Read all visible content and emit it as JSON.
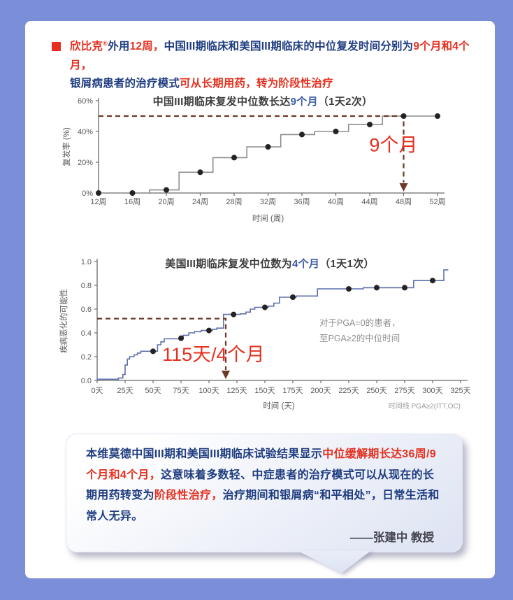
{
  "colors": {
    "frame_bg": "#7b8ed8",
    "panel_bg": "#ffffff",
    "red": "#e5301f",
    "navy": "#1e3c80",
    "blue": "#3d5cab",
    "dark": "#3d3d3d",
    "maroon": "#6e392b",
    "axis": "#6b6b6b",
    "tick_text": "#595959",
    "annotation_gray": "#8f8f8f",
    "note_gray": "#999999",
    "signature": "#45454f"
  },
  "header": {
    "lines": [
      [
        {
          "t": "欣比克",
          "c": "red"
        },
        {
          "t": "®",
          "c": "red",
          "sup": true
        },
        {
          "t": "外用",
          "c": "navy"
        },
        {
          "t": "12周，",
          "c": "red"
        },
        {
          "t": "中国III期临床和美国III期临床的中位复发时间分别为",
          "c": "navy"
        },
        {
          "t": "9个月和4个月，",
          "c": "red"
        }
      ],
      [
        {
          "t": "银屑病患者的治疗模式",
          "c": "navy"
        },
        {
          "t": "可从长期用药，转为阶段性治疗",
          "c": "red"
        }
      ]
    ]
  },
  "chart_data": [
    {
      "type": "line",
      "variant": "step",
      "title_segments": [
        {
          "t": "中国III期临床复发中位数长达",
          "c": "dark"
        },
        {
          "t": "9个月",
          "c": "blue"
        },
        {
          "t": "（1天2次）",
          "c": "dark"
        }
      ],
      "xlabel": "时间 (周)",
      "ylabel": "复发率 (%)",
      "xlim": [
        12,
        52
      ],
      "ylim": [
        0,
        60
      ],
      "line_color": "#8e8e8e",
      "dot_color": "#262220",
      "x_ticks": [
        [
          12,
          "12周"
        ],
        [
          16,
          "16周"
        ],
        [
          20,
          "20周"
        ],
        [
          24,
          "24周"
        ],
        [
          28,
          "28周"
        ],
        [
          32,
          "32周"
        ],
        [
          36,
          "36周"
        ],
        [
          40,
          "40周"
        ],
        [
          44,
          "44周"
        ],
        [
          48,
          "48周"
        ],
        [
          52,
          "52周"
        ]
      ],
      "y_ticks": [
        [
          0,
          "0%"
        ],
        [
          20,
          "20%"
        ],
        [
          40,
          "40%"
        ],
        [
          60,
          "60%"
        ]
      ],
      "step_points": [
        [
          12,
          0
        ],
        [
          18,
          0
        ],
        [
          18,
          2
        ],
        [
          21.5,
          2
        ],
        [
          21.5,
          13.5
        ],
        [
          25.5,
          13.5
        ],
        [
          25.5,
          23
        ],
        [
          29.5,
          23
        ],
        [
          29.5,
          30
        ],
        [
          33.5,
          30
        ],
        [
          33.5,
          38
        ],
        [
          37.5,
          38
        ],
        [
          37.5,
          40
        ],
        [
          41.5,
          40
        ],
        [
          41.5,
          44.5
        ],
        [
          45.5,
          44.5
        ],
        [
          45.5,
          50
        ],
        [
          52,
          50
        ]
      ],
      "markers": [
        [
          12,
          0
        ],
        [
          16,
          0
        ],
        [
          20,
          2
        ],
        [
          24,
          13.5
        ],
        [
          28,
          23
        ],
        [
          32,
          30
        ],
        [
          36,
          38
        ],
        [
          40,
          40
        ],
        [
          44,
          44.5
        ],
        [
          48,
          50
        ],
        [
          52,
          50
        ]
      ],
      "median": {
        "x": 48,
        "y": 50,
        "label": "9个月"
      }
    },
    {
      "type": "line",
      "variant": "step",
      "title_segments": [
        {
          "t": "美国III期临床复发中位数为",
          "c": "dark"
        },
        {
          "t": "4个月",
          "c": "blue"
        },
        {
          "t": "（1天1次）",
          "c": "dark"
        }
      ],
      "xlabel": "时间 (天)",
      "ylabel": "疾病恶化的可能性",
      "xlim": [
        0,
        325
      ],
      "ylim": [
        0,
        1
      ],
      "line_color": "#5f70af",
      "dot_color": "#262220",
      "x_ticks": [
        [
          0,
          "0天"
        ],
        [
          25,
          "25天"
        ],
        [
          50,
          "50天"
        ],
        [
          75,
          "75天"
        ],
        [
          100,
          "100天"
        ],
        [
          125,
          "125天"
        ],
        [
          150,
          "150天"
        ],
        [
          175,
          "175天"
        ],
        [
          200,
          "200天"
        ],
        [
          225,
          "225天"
        ],
        [
          250,
          "250天"
        ],
        [
          275,
          "275天"
        ],
        [
          300,
          "300天"
        ],
        [
          325,
          "325天"
        ]
      ],
      "y_ticks": [
        [
          0,
          "0.0"
        ],
        [
          0.2,
          "0.2"
        ],
        [
          0.4,
          "0.4"
        ],
        [
          0.6,
          "0.6"
        ],
        [
          0.8,
          "0.8"
        ],
        [
          1,
          "1.0"
        ]
      ],
      "step_points": [
        [
          0,
          0.01
        ],
        [
          19,
          0.01
        ],
        [
          19,
          0.02
        ],
        [
          23,
          0.02
        ],
        [
          23,
          0.05
        ],
        [
          25,
          0.05
        ],
        [
          25,
          0.13
        ],
        [
          27,
          0.13
        ],
        [
          27,
          0.18
        ],
        [
          29,
          0.18
        ],
        [
          29,
          0.2
        ],
        [
          33,
          0.2
        ],
        [
          33,
          0.215
        ],
        [
          36,
          0.215
        ],
        [
          36,
          0.23
        ],
        [
          39,
          0.23
        ],
        [
          39,
          0.245
        ],
        [
          54,
          0.245
        ],
        [
          54,
          0.3
        ],
        [
          57,
          0.3
        ],
        [
          57,
          0.325
        ],
        [
          60,
          0.325
        ],
        [
          60,
          0.35
        ],
        [
          77,
          0.35
        ],
        [
          77,
          0.38
        ],
        [
          82,
          0.38
        ],
        [
          82,
          0.4
        ],
        [
          87,
          0.4
        ],
        [
          87,
          0.41
        ],
        [
          93,
          0.41
        ],
        [
          93,
          0.42
        ],
        [
          103,
          0.42
        ],
        [
          103,
          0.43
        ],
        [
          107,
          0.43
        ],
        [
          107,
          0.44
        ],
        [
          113,
          0.44
        ],
        [
          113,
          0.555
        ],
        [
          128,
          0.555
        ],
        [
          128,
          0.56
        ],
        [
          133,
          0.56
        ],
        [
          133,
          0.575
        ],
        [
          137,
          0.575
        ],
        [
          137,
          0.6
        ],
        [
          141,
          0.6
        ],
        [
          141,
          0.615
        ],
        [
          153,
          0.615
        ],
        [
          153,
          0.625
        ],
        [
          158,
          0.625
        ],
        [
          158,
          0.65
        ],
        [
          163,
          0.65
        ],
        [
          163,
          0.7
        ],
        [
          178,
          0.7
        ],
        [
          178,
          0.71
        ],
        [
          197,
          0.71
        ],
        [
          197,
          0.77
        ],
        [
          238,
          0.77
        ],
        [
          238,
          0.78
        ],
        [
          283,
          0.78
        ],
        [
          283,
          0.84
        ],
        [
          310,
          0.84
        ],
        [
          310,
          0.93
        ],
        [
          314,
          0.93
        ]
      ],
      "markers": [
        [
          50,
          0.245
        ],
        [
          75,
          0.355
        ],
        [
          100,
          0.42
        ],
        [
          122,
          0.555
        ],
        [
          150,
          0.615
        ],
        [
          175,
          0.7
        ],
        [
          225,
          0.77
        ],
        [
          250,
          0.78
        ],
        [
          275,
          0.78
        ],
        [
          300,
          0.84
        ]
      ],
      "median": {
        "x": 115,
        "y": 0.52,
        "label": "115天/4个月"
      },
      "annotation": [
        "对于PGA=0的患者，",
        "至PGA≥2的中位时间"
      ],
      "corner_note": "时间线 PGA≥2(ITT,OC)"
    }
  ],
  "bubble": {
    "segments": [
      {
        "t": "本维莫德中国III期和美国III期临床试验结果显示",
        "c": "navy"
      },
      {
        "t": "中位缓解期长达36周/9个月和4个月，",
        "c": "red"
      },
      {
        "t": "这意味着多数轻、中症患者的治疗模式可以从现在的长期用药转变为",
        "c": "navy"
      },
      {
        "t": "阶段性治疗，",
        "c": "red"
      },
      {
        "t": "治疗期间和银屑病“和平相处”，日常生活和常人无异。",
        "c": "navy"
      }
    ],
    "signature": "——张建中 教授"
  }
}
